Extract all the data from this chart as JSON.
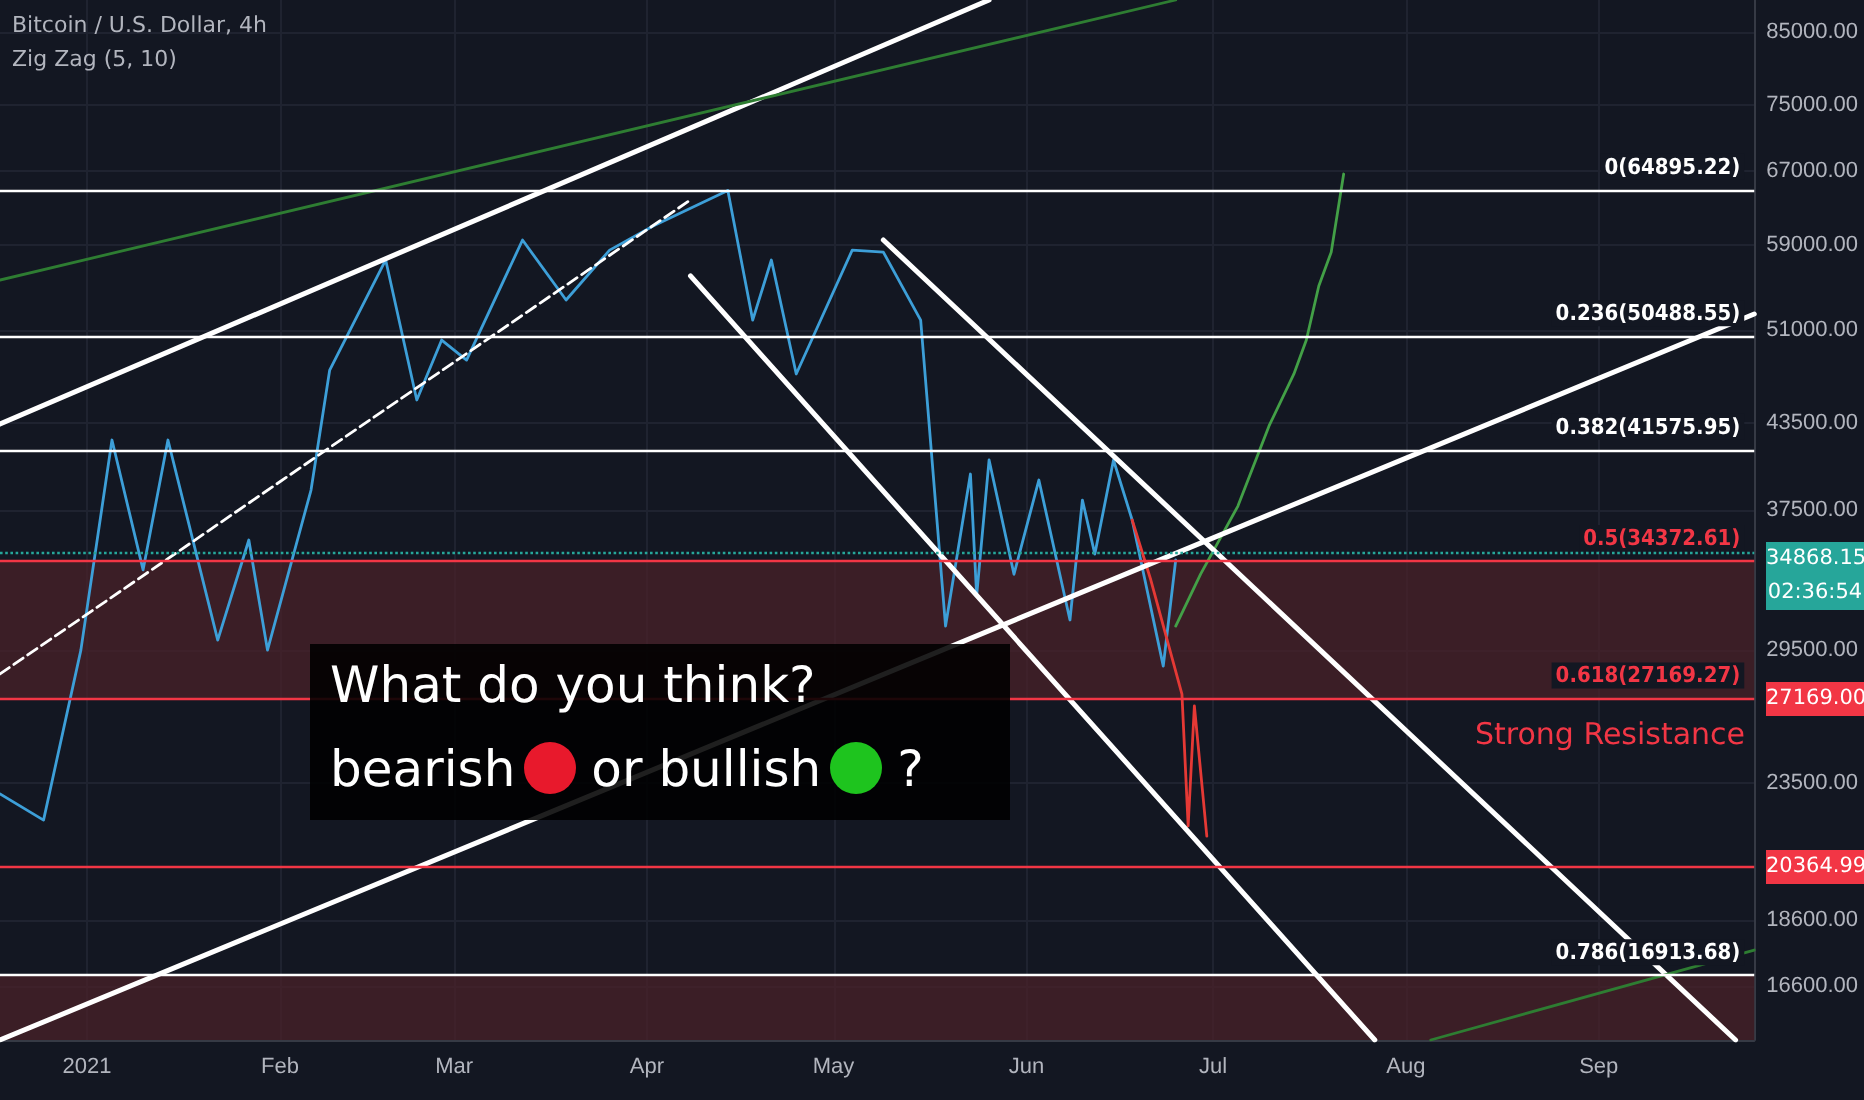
{
  "chart_data": {
    "type": "line",
    "title": "Bitcoin / U.S. Dollar, 4h",
    "subtitle": "Zig Zag (5, 10)",
    "log": "y",
    "grid": true,
    "marker": "none",
    "xlim": [
      "2020-12-18",
      "2021-09-26"
    ],
    "xticks": [
      {
        "value": "2021-01-01",
        "label": "2021"
      },
      {
        "value": "2021-02-01",
        "label": "Feb"
      },
      {
        "value": "2021-03-01",
        "label": "Mar"
      },
      {
        "value": "2021-04-01",
        "label": "Apr"
      },
      {
        "value": "2021-05-01",
        "label": "May"
      },
      {
        "value": "2021-06-01",
        "label": "Jun"
      },
      {
        "value": "2021-07-01",
        "label": "Jul"
      },
      {
        "value": "2021-08-01",
        "label": "Aug"
      },
      {
        "value": "2021-09-01",
        "label": "Sep"
      }
    ],
    "ylim": [
      15140,
      89790
    ],
    "yticks": [
      {
        "value": 16600,
        "label": "16600.00"
      },
      {
        "value": 18600,
        "label": "18600.00"
      },
      {
        "value": 23500,
        "label": "23500.00"
      },
      {
        "value": 29500,
        "label": "29500.00"
      },
      {
        "value": 37500,
        "label": "37500.00"
      },
      {
        "value": 43500,
        "label": "43500.00"
      },
      {
        "value": 51000,
        "label": "51000.00"
      },
      {
        "value": 59000,
        "label": "59000.00"
      },
      {
        "value": 67000,
        "label": "67000.00"
      },
      {
        "value": 75000,
        "label": "75000.00"
      },
      {
        "value": 85000,
        "label": "85000.00"
      }
    ],
    "series": [
      {
        "color": "#3d9fd8",
        "line_style": "solid",
        "x": [
          "2020-12-18",
          "2020-12-25",
          "2020-12-31",
          "2021-01-05",
          "2021-01-10",
          "2021-01-14",
          "2021-01-22",
          "2021-01-27",
          "2021-01-30",
          "2021-02-06",
          "2021-02-09",
          "2021-02-18",
          "2021-02-23",
          "2021-02-27",
          "2021-03-03",
          "2021-03-12",
          "2021-03-19",
          "2021-03-26",
          "2021-04-02",
          "2021-04-14",
          "2021-04-18",
          "2021-04-21",
          "2021-04-25",
          "2021-05-04",
          "2021-05-09",
          "2021-05-15",
          "2021-05-19",
          "2021-05-23",
          "2021-05-24",
          "2021-05-26",
          "2021-05-30",
          "2021-06-03",
          "2021-06-08",
          "2021-06-10",
          "2021-06-12",
          "2021-06-15",
          "2021-06-18",
          "2021-06-23",
          "2021-06-25"
        ],
        "values": [
          23070,
          22060,
          29510,
          42280,
          33850,
          42280,
          30020,
          35630,
          29510,
          38810,
          47660,
          57540,
          45280,
          50170,
          48480,
          59540,
          53730,
          58520,
          60980,
          64800,
          51910,
          57540,
          47340,
          58520,
          58320,
          51910,
          30750,
          39890,
          32400,
          40860,
          33600,
          39480,
          31070,
          38150,
          34780,
          40860,
          36870,
          28710,
          34430
        ]
      },
      {
        "color": "#e53935",
        "line_style": "solid",
        "x": [
          "2021-06-18",
          "2021-06-21",
          "2021-06-26",
          "2021-06-27",
          "2021-06-28",
          "2021-06-30"
        ],
        "values": [
          36870,
          33270,
          27370,
          21840,
          26820,
          21460
        ]
      },
      {
        "color": "#43a047",
        "line_style": "solid",
        "x": [
          "2021-06-25",
          "2021-06-29",
          "2021-07-05",
          "2021-07-07",
          "2021-07-10",
          "2021-07-14",
          "2021-07-16",
          "2021-07-18",
          "2021-07-20",
          "2021-07-22"
        ],
        "values": [
          30750,
          33610,
          37760,
          39890,
          43310,
          47340,
          50170,
          55030,
          58320,
          66660
        ]
      },
      {
        "color": "#ffffff",
        "line_style": "solid",
        "x": [
          "2020-12-18",
          "2021-05-26"
        ],
        "values": [
          43450,
          89790
        ]
      },
      {
        "color": "#ffffff",
        "line_style": "solid",
        "x": [
          "2020-12-18",
          "2021-09-26"
        ],
        "values": [
          15140,
          52460
        ]
      },
      {
        "color": "#ffffff",
        "line_style": "solid",
        "x": [
          "2021-04-08",
          "2021-07-27"
        ],
        "values": [
          55990,
          15140
        ]
      },
      {
        "color": "#ffffff",
        "line_style": "solid",
        "x": [
          "2021-05-09",
          "2021-09-23"
        ],
        "values": [
          59540,
          15140
        ]
      },
      {
        "color": "#2e7d32",
        "line_style": "solid",
        "x": [
          "2020-12-18",
          "2021-06-25"
        ],
        "values": [
          55600,
          89790
        ]
      },
      {
        "color": "#2e7d32",
        "line_style": "solid",
        "x": [
          "2021-08-05",
          "2021-09-26"
        ],
        "values": [
          15140,
          17660
        ]
      },
      {
        "color": "#ffffff",
        "line_style": "dashed",
        "x": [
          "2020-12-18",
          "2021-04-08"
        ],
        "values": [
          28330,
          63780
        ]
      }
    ],
    "ref_lines": [
      {
        "axis": "y",
        "value": 64895.22,
        "label": "0(64895.22)",
        "color": "#ffffff",
        "line_style": "solid"
      },
      {
        "axis": "y",
        "value": 50488.55,
        "label": "0.236(50488.55)",
        "color": "#ffffff",
        "line_style": "solid"
      },
      {
        "axis": "y",
        "value": 41575.95,
        "label": "0.382(41575.95)",
        "color": "#ffffff",
        "line_style": "solid"
      },
      {
        "axis": "y",
        "value": 34372.61,
        "label": "0.5(34372.61)",
        "color": "#f23645",
        "line_style": "solid"
      },
      {
        "axis": "y",
        "value": 27169.27,
        "label": "0.618(27169.27)",
        "color": "#f23645",
        "line_style": "solid"
      },
      {
        "axis": "y",
        "value": 16913.68,
        "label": "0.786(16913.68)",
        "color": "#ffffff",
        "line_style": "solid"
      },
      {
        "axis": "y",
        "value": 34868.15,
        "label": null,
        "color": "#26a69a",
        "line_style": "dotted"
      },
      {
        "axis": "y",
        "value": 20364.99,
        "label": null,
        "color": "#f23645",
        "line_style": "solid"
      }
    ],
    "bands": [
      {
        "axis": "y",
        "from": 27169.27,
        "to": 34372.61,
        "color": "#4a2228"
      },
      {
        "axis": "y",
        "from": 15140,
        "to": 16913.68,
        "color": "#4a2228"
      }
    ],
    "annotations": [
      "What do you think?",
      "bearish",
      "or bullish",
      "?",
      "Strong Resistance",
      "34868.15",
      "02:36:54",
      "27169.00",
      "20364.99"
    ]
  }
}
